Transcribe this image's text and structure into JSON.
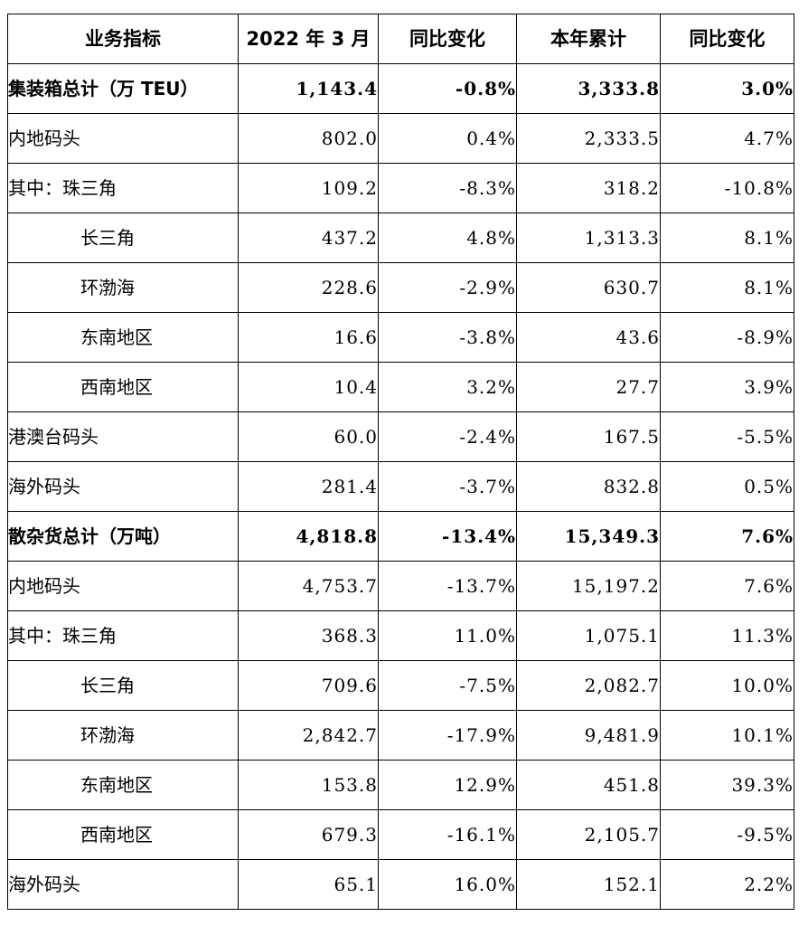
{
  "table": {
    "headers": [
      "业务指标",
      "2022 年 3 月",
      "同比变化",
      "本年累计",
      "同比变化"
    ],
    "rows": [
      {
        "label": "集装箱总计（万 TEU）",
        "bold": true,
        "indent": false,
        "values": [
          "1,143.4",
          "-0.8%",
          "3,333.8",
          "3.0%"
        ]
      },
      {
        "label": "内地码头",
        "bold": false,
        "indent": false,
        "values": [
          "802.0",
          "0.4%",
          "2,333.5",
          "4.7%"
        ]
      },
      {
        "label": "其中：珠三角",
        "bold": false,
        "indent": false,
        "values": [
          "109.2",
          "-8.3%",
          "318.2",
          "-10.8%"
        ]
      },
      {
        "label": "长三角",
        "bold": false,
        "indent": true,
        "values": [
          "437.2",
          "4.8%",
          "1,313.3",
          "8.1%"
        ]
      },
      {
        "label": "环渤海",
        "bold": false,
        "indent": true,
        "values": [
          "228.6",
          "-2.9%",
          "630.7",
          "8.1%"
        ]
      },
      {
        "label": "东南地区",
        "bold": false,
        "indent": true,
        "values": [
          "16.6",
          "-3.8%",
          "43.6",
          "-8.9%"
        ]
      },
      {
        "label": "西南地区",
        "bold": false,
        "indent": true,
        "values": [
          "10.4",
          "3.2%",
          "27.7",
          "3.9%"
        ]
      },
      {
        "label": "港澳台码头",
        "bold": false,
        "indent": false,
        "values": [
          "60.0",
          "-2.4%",
          "167.5",
          "-5.5%"
        ]
      },
      {
        "label": "海外码头",
        "bold": false,
        "indent": false,
        "values": [
          "281.4",
          "-3.7%",
          "832.8",
          "0.5%"
        ]
      },
      {
        "label": "散杂货总计（万吨）",
        "bold": true,
        "indent": false,
        "values": [
          "4,818.8",
          "-13.4%",
          "15,349.3",
          "7.6%"
        ]
      },
      {
        "label": "内地码头",
        "bold": false,
        "indent": false,
        "values": [
          "4,753.7",
          "-13.7%",
          "15,197.2",
          "7.6%"
        ]
      },
      {
        "label": "其中：珠三角",
        "bold": false,
        "indent": false,
        "values": [
          "368.3",
          "11.0%",
          "1,075.1",
          "11.3%"
        ]
      },
      {
        "label": "长三角",
        "bold": false,
        "indent": true,
        "values": [
          "709.6",
          "-7.5%",
          "2,082.7",
          "10.0%"
        ]
      },
      {
        "label": "环渤海",
        "bold": false,
        "indent": true,
        "values": [
          "2,842.7",
          "-17.9%",
          "9,481.9",
          "10.1%"
        ]
      },
      {
        "label": "东南地区",
        "bold": false,
        "indent": true,
        "values": [
          "153.8",
          "12.9%",
          "451.8",
          "39.3%"
        ]
      },
      {
        "label": "西南地区",
        "bold": false,
        "indent": true,
        "values": [
          "679.3",
          "-16.1%",
          "2,105.7",
          "-9.5%"
        ]
      },
      {
        "label": "海外码头",
        "bold": false,
        "indent": false,
        "values": [
          "65.1",
          "16.0%",
          "152.1",
          "2.2%"
        ]
      }
    ]
  }
}
